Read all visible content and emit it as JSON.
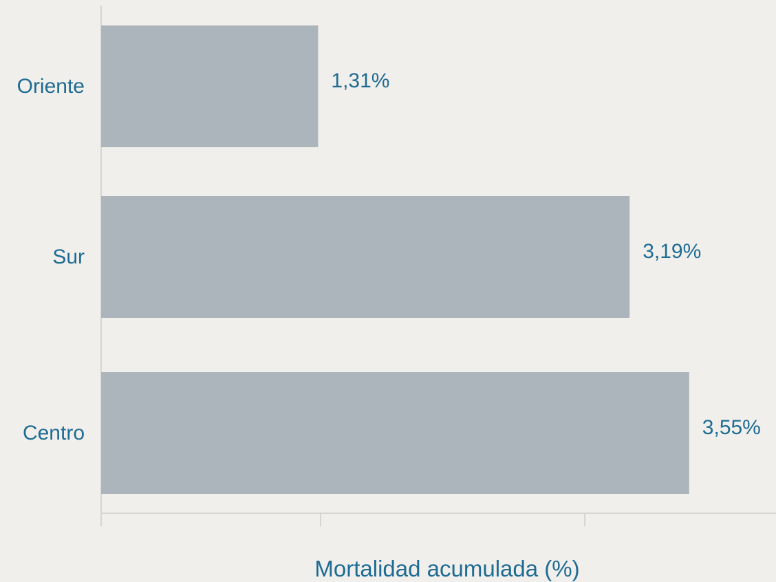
{
  "chart_data": {
    "type": "bar",
    "orientation": "horizontal",
    "categories": [
      "Oriente",
      "Sur",
      "Centro"
    ],
    "values": [
      1.31,
      3.19,
      3.55
    ],
    "value_labels": [
      "1,31%",
      "3,19%",
      "3,55%"
    ],
    "title": "",
    "xlabel": "Mortalidad acumulada (%)",
    "ylabel": "",
    "xlim": [
      0,
      4.6
    ],
    "grid": false,
    "legend": "none",
    "colors": {
      "bar": "#adb5bc",
      "text": "#1f6b93",
      "axis": "#d6d5d1",
      "background": "#f0efeb"
    }
  }
}
